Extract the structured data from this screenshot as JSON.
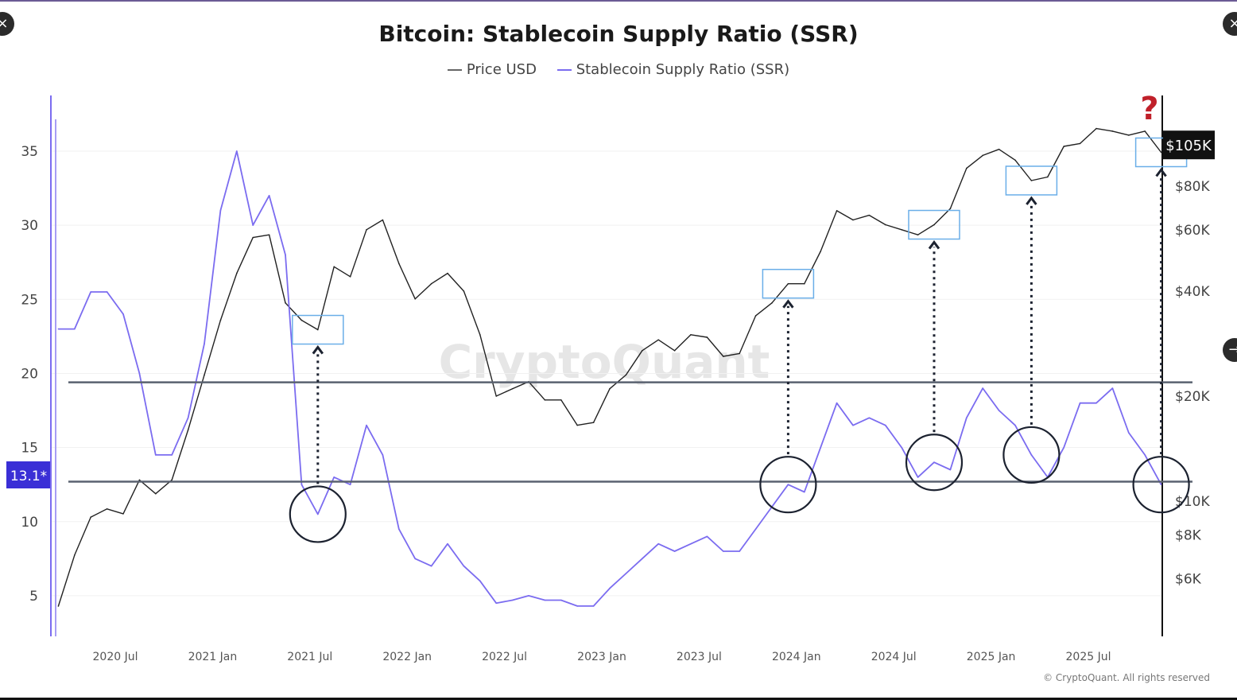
{
  "window": {
    "close_left_icon": "close-icon",
    "close_right_icon": "close-icon",
    "side_button_icon": "arrow-right-icon"
  },
  "chart_data": {
    "type": "line",
    "title": "Bitcoin: Stablecoin Supply Ratio (SSR)",
    "legend_position": "top-center",
    "watermark": "CryptoQuant",
    "copyright": "© CryptoQuant. All rights reserved",
    "x_ticks": [
      "2020 Jul",
      "2021 Jan",
      "2021 Jul",
      "2022 Jan",
      "2022 Jul",
      "2023 Jan",
      "2023 Jul",
      "2024 Jan",
      "2024 Jul",
      "2025 Jan",
      "2025 Jul"
    ],
    "x_tick_dates": [
      "2020-07",
      "2021-01",
      "2021-07",
      "2022-01",
      "2022-07",
      "2023-01",
      "2023-07",
      "2024-01",
      "2024-07",
      "2025-01",
      "2025-07"
    ],
    "left_axis": {
      "ticks": [
        5,
        10,
        15,
        20,
        25,
        30,
        35
      ],
      "range": [
        2.3,
        38.8
      ],
      "current_label": "13.1*",
      "current_value": 13.1,
      "badge_color": "#3a2fd6"
    },
    "right_axis": {
      "scale": "log",
      "ticks": [
        6000,
        8000,
        10000,
        20000,
        40000,
        60000,
        80000
      ],
      "tick_labels": [
        "$6K",
        "$8K",
        "$10K",
        "$20K",
        "$40K",
        "$60K",
        "$80K"
      ],
      "current_label": "$105K",
      "current_value": 105000
    },
    "horizontal_levels": [
      19.4,
      12.7
    ],
    "annotation_dates": [
      "2021-07",
      "2023-12",
      "2024-09",
      "2025-03",
      "2025-11"
    ],
    "question_mark": "?",
    "series": [
      {
        "name": "Price USD",
        "axis": "right",
        "color": "#222222",
        "x": [
          "2020-03",
          "2020-04",
          "2020-05",
          "2020-06",
          "2020-07",
          "2020-08",
          "2020-09",
          "2020-10",
          "2020-11",
          "2020-12",
          "2021-01",
          "2021-02",
          "2021-03",
          "2021-04",
          "2021-05",
          "2021-06",
          "2021-07",
          "2021-08",
          "2021-09",
          "2021-10",
          "2021-11",
          "2021-12",
          "2022-01",
          "2022-02",
          "2022-03",
          "2022-04",
          "2022-05",
          "2022-06",
          "2022-07",
          "2022-08",
          "2022-09",
          "2022-10",
          "2022-11",
          "2022-12",
          "2023-01",
          "2023-02",
          "2023-03",
          "2023-04",
          "2023-05",
          "2023-06",
          "2023-07",
          "2023-08",
          "2023-09",
          "2023-10",
          "2023-11",
          "2023-12",
          "2024-01",
          "2024-02",
          "2024-03",
          "2024-04",
          "2024-05",
          "2024-06",
          "2024-07",
          "2024-08",
          "2024-09",
          "2024-10",
          "2024-11",
          "2024-12",
          "2025-01",
          "2025-02",
          "2025-03",
          "2025-04",
          "2025-05",
          "2025-06",
          "2025-07",
          "2025-08",
          "2025-09",
          "2025-10",
          "2025-11"
        ],
        "values": [
          5000,
          7000,
          9000,
          9500,
          9200,
          11500,
          10500,
          11500,
          16000,
          23000,
          33000,
          45000,
          57000,
          58000,
          37000,
          33000,
          31000,
          47000,
          44000,
          60000,
          64000,
          48000,
          38000,
          42000,
          45000,
          40000,
          30000,
          20000,
          21000,
          22000,
          19500,
          19500,
          16500,
          16800,
          21000,
          23000,
          27000,
          29000,
          27000,
          30000,
          29500,
          26000,
          26500,
          34000,
          37000,
          42000,
          42000,
          52000,
          68000,
          64000,
          66000,
          62000,
          60000,
          58000,
          62000,
          69000,
          90000,
          98000,
          102000,
          95000,
          83000,
          85000,
          104000,
          106000,
          117000,
          115000,
          112000,
          115000,
          100000
        ]
      },
      {
        "name": "Stablecoin Supply Ratio (SSR)",
        "axis": "left",
        "color": "#7b6cf0",
        "x": [
          "2020-03",
          "2020-04",
          "2020-05",
          "2020-06",
          "2020-07",
          "2020-08",
          "2020-09",
          "2020-10",
          "2020-11",
          "2020-12",
          "2021-01",
          "2021-02",
          "2021-03",
          "2021-04",
          "2021-05",
          "2021-06",
          "2021-07",
          "2021-08",
          "2021-09",
          "2021-10",
          "2021-11",
          "2021-12",
          "2022-01",
          "2022-02",
          "2022-03",
          "2022-04",
          "2022-05",
          "2022-06",
          "2022-07",
          "2022-08",
          "2022-09",
          "2022-10",
          "2022-11",
          "2022-12",
          "2023-01",
          "2023-02",
          "2023-03",
          "2023-04",
          "2023-05",
          "2023-06",
          "2023-07",
          "2023-08",
          "2023-09",
          "2023-10",
          "2023-11",
          "2023-12",
          "2024-01",
          "2024-02",
          "2024-03",
          "2024-04",
          "2024-05",
          "2024-06",
          "2024-07",
          "2024-08",
          "2024-09",
          "2024-10",
          "2024-11",
          "2024-12",
          "2025-01",
          "2025-02",
          "2025-03",
          "2025-04",
          "2025-05",
          "2025-06",
          "2025-07",
          "2025-08",
          "2025-09",
          "2025-10",
          "2025-11"
        ],
        "values": [
          23,
          23,
          25.5,
          25.5,
          24,
          20,
          14.5,
          14.5,
          17,
          22,
          31,
          35,
          30,
          32,
          28,
          12.5,
          10.5,
          13,
          12.5,
          16.5,
          14.5,
          9.5,
          7.5,
          7,
          8.5,
          7,
          6,
          4.5,
          4.7,
          5,
          4.7,
          4.7,
          4.3,
          4.3,
          5.5,
          6.5,
          7.5,
          8.5,
          8,
          8.5,
          9,
          8,
          8,
          9.5,
          11,
          12.5,
          12,
          15,
          18,
          16.5,
          17,
          16.5,
          15,
          13,
          14,
          13.5,
          17,
          19,
          17.5,
          16.5,
          14.5,
          13,
          15,
          18,
          18,
          19,
          16,
          14.5,
          12.5
        ]
      }
    ]
  }
}
